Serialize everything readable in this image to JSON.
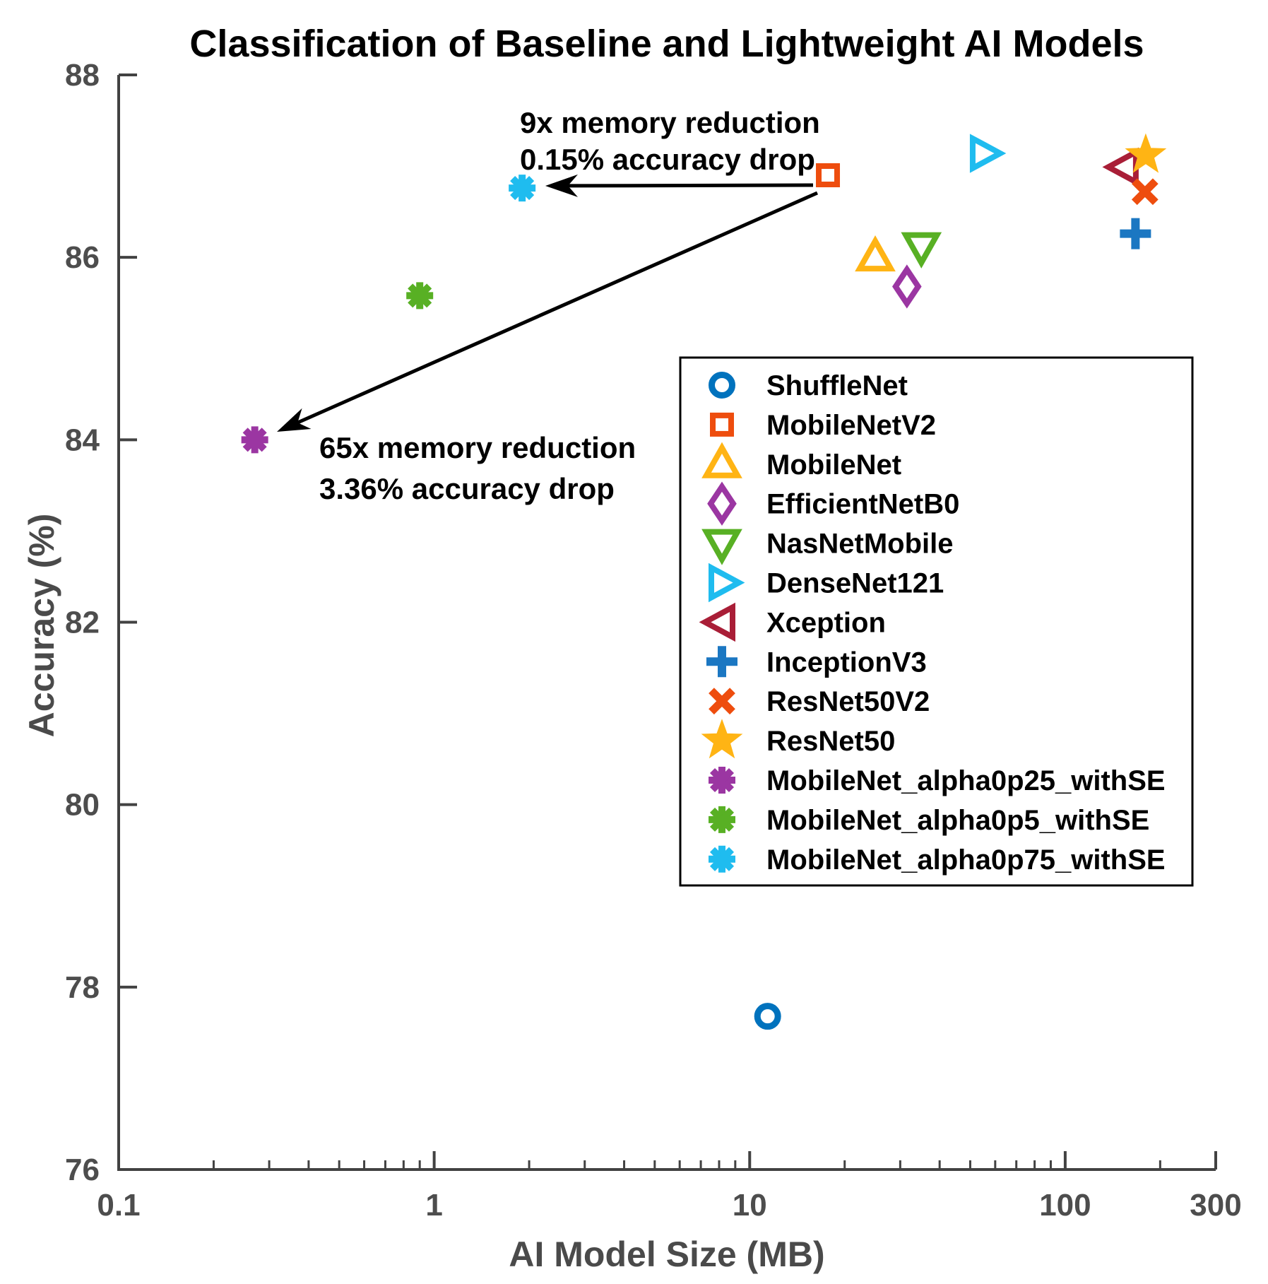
{
  "title": "Classification of Baseline and Lightweight AI Models",
  "chart_data": {
    "type": "scatter",
    "title": "Classification of Baseline and Lightweight AI Models",
    "xlabel": "AI Model Size (MB)",
    "ylabel": "Accuracy (%)",
    "x_scale": "log",
    "xlim": [
      0.1,
      300
    ],
    "ylim": [
      76,
      88
    ],
    "x_tick_labels": [
      "0.1",
      "1",
      "10",
      "100",
      "300"
    ],
    "x_tick_values": [
      0.1,
      1,
      10,
      100,
      300
    ],
    "y_tick_labels": [
      "76",
      "78",
      "80",
      "82",
      "84",
      "86",
      "88"
    ],
    "y_tick_values": [
      76,
      78,
      80,
      82,
      84,
      86,
      88
    ],
    "grid": false,
    "legend_position": "middle-right-box",
    "series": [
      {
        "name": "ShuffleNet",
        "marker": "circle",
        "color": "#0072BD",
        "x": 11.4,
        "y": 77.68
      },
      {
        "name": "MobileNetV2",
        "marker": "square",
        "color": "#EE4D0E",
        "x": 17.7,
        "y": 86.9
      },
      {
        "name": "MobileNet",
        "marker": "triangle-up",
        "color": "#FFB414",
        "x": 25.0,
        "y": 86.0
      },
      {
        "name": "EfficientNetB0",
        "marker": "diamond",
        "color": "#9B36A2",
        "x": 31.5,
        "y": 85.68
      },
      {
        "name": "NasNetMobile",
        "marker": "triangle-down",
        "color": "#58B024",
        "x": 35.0,
        "y": 86.12
      },
      {
        "name": "DenseNet121",
        "marker": "triangle-right",
        "color": "#1FBCEF",
        "x": 55.0,
        "y": 87.14
      },
      {
        "name": "Xception",
        "marker": "triangle-left",
        "color": "#A91E37",
        "x": 155.0,
        "y": 86.99
      },
      {
        "name": "InceptionV3",
        "marker": "plus",
        "color": "#1B77C2",
        "x": 167.0,
        "y": 86.26
      },
      {
        "name": "ResNet50V2",
        "marker": "x",
        "color": "#EE4D0E",
        "x": 179.0,
        "y": 86.72
      },
      {
        "name": "ResNet50",
        "marker": "star",
        "color": "#FFB414",
        "x": 180.0,
        "y": 87.12
      },
      {
        "name": "MobileNet_alpha0p25_withSE",
        "marker": "asterisk",
        "color": "#9B36A2",
        "x": 0.27,
        "y": 84.0
      },
      {
        "name": "MobileNet_alpha0p5_withSE",
        "marker": "asterisk",
        "color": "#58B024",
        "x": 0.9,
        "y": 85.58
      },
      {
        "name": "MobileNet_alpha0p75_withSE",
        "marker": "asterisk",
        "color": "#1FBCEF",
        "x": 1.9,
        "y": 86.76
      }
    ],
    "annotations": [
      {
        "text_lines": [
          "9x memory reduction",
          "0.15% accuracy drop"
        ],
        "from": "MobileNetV2",
        "to": "MobileNet_alpha0p75_withSE"
      },
      {
        "text_lines": [
          "65x memory reduction",
          "3.36% accuracy drop"
        ],
        "from": "MobileNetV2",
        "to": "MobileNet_alpha0p25_withSE"
      }
    ]
  },
  "style_colors": {
    "axis": "#424242",
    "tick_text": "#4D4D4D",
    "label_text": "#4A4A4A",
    "title_text": "#000000",
    "annotation_text": "#000000",
    "legend_border": "#000000",
    "legend_bg": "#FFFFFF"
  }
}
